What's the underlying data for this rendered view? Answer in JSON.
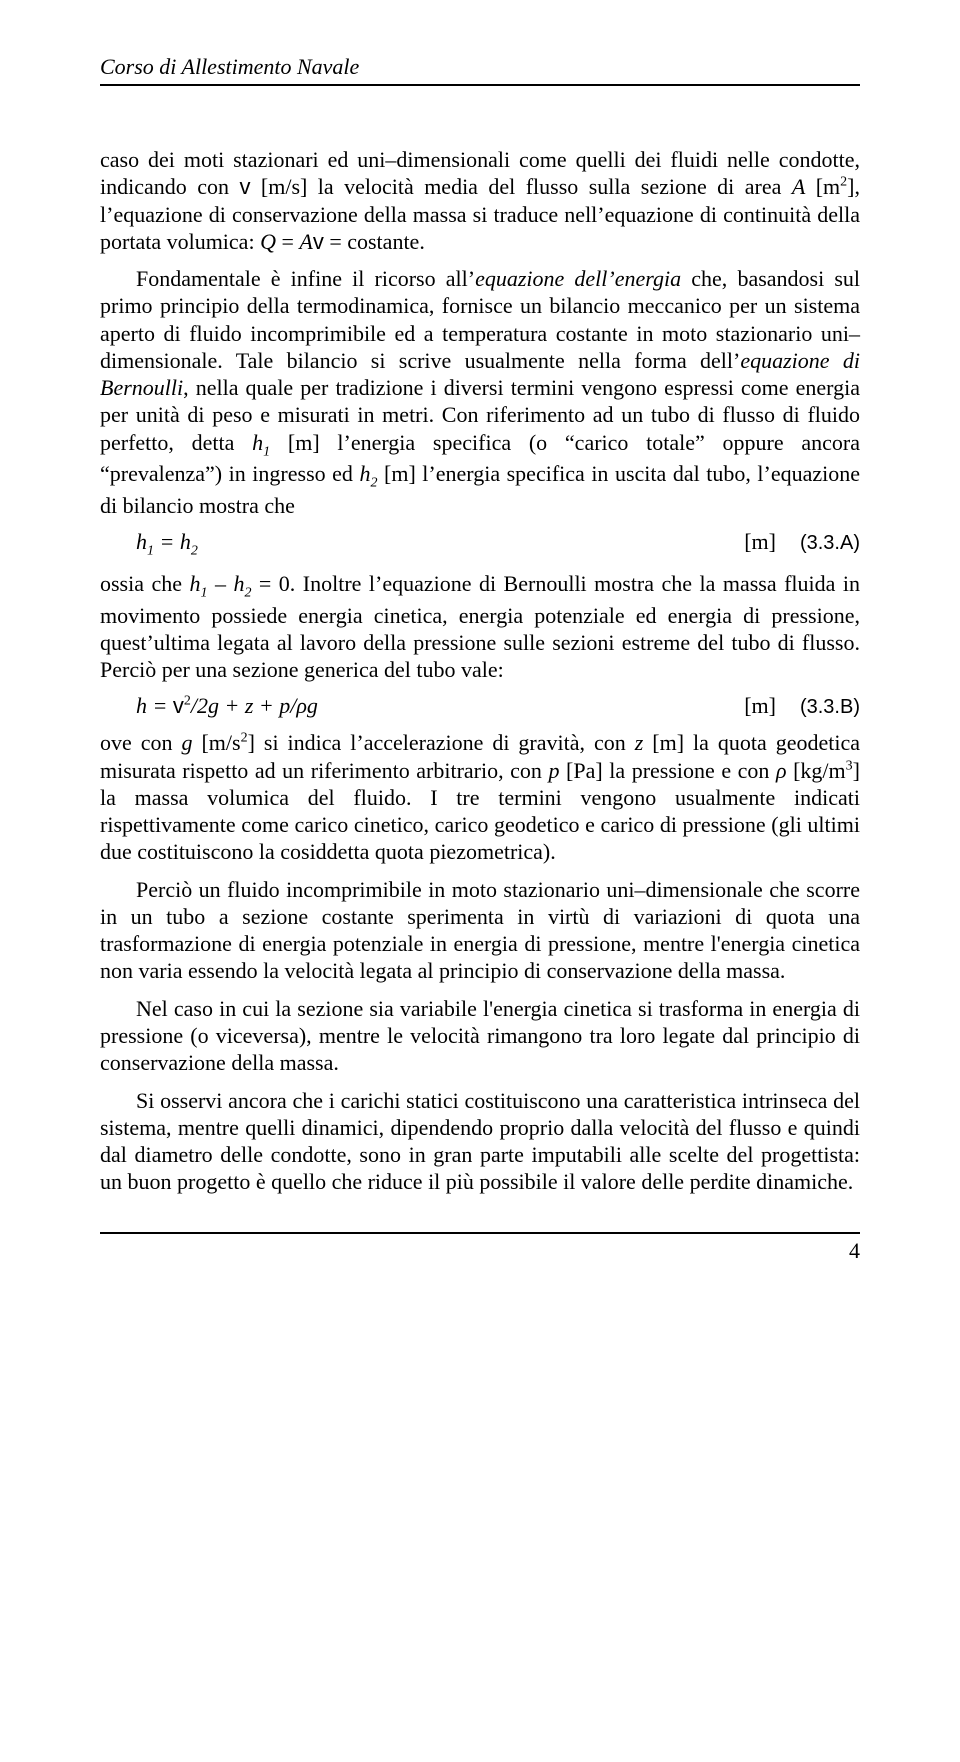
{
  "header": {
    "running_title": "Corso di Allestimento Navale"
  },
  "footer": {
    "page_number": "4"
  },
  "paragraphs": {
    "p1": "caso dei moti stazionari ed uni–dimensionali come quelli dei fluidi nelle condotte, indicando con v [m/s] la velocità media del flusso sulla sezione di area A [m²], l'equazione di conservazione della massa si traduce nell'equazione di continuità della portata volumica: Q = Av = costante.",
    "p2": "Fondamentale è infine il ricorso all'equazione dell'energia che, basandosi sul primo principio della termodinamica, fornisce un bilancio meccanico per un sistema aperto di fluido incomprimibile ed a temperatura costante in moto stazionario uni–dimensionale. Tale bilancio si scrive usualmente nella forma dell'equazione di Bernoulli, nella quale per tradizione i diversi termini vengono espressi come energia per unità di peso e misurati in metri. Con riferimento ad un tubo di flusso di fluido perfetto, detta h₁ [m] l'energia specifica (o \"carico totale\" oppure ancora \"prevalenza\") in ingresso ed h₂ [m] l'energia specifica in uscita dal tubo, l'equazione di bilancio mostra che",
    "p3": "ossia che h₁ – h₂ = 0. Inoltre l'equazione di Bernoulli mostra che la massa fluida in movimento possiede energia cinetica, energia potenziale ed energia di pressione, quest'ultima legata al lavoro della pressione sulle sezioni estreme del tubo di flusso. Perciò per una sezione generica del tubo vale:",
    "p4": "ove con g [m/s²] si indica l'accelerazione di gravità, con z [m] la quota geodetica misurata rispetto ad un riferimento arbitrario, con p [Pa] la pressione e con ρ [kg/m³] la massa volumica del fluido. I tre termini vengono usualmente indicati rispettivamente come carico cinetico, carico geodetico e carico di pressione (gli ultimi due costituiscono la cosiddetta quota piezometrica).",
    "p5": "Perciò un fluido incomprimibile in moto stazionario uni–dimensionale che scorre in un tubo a sezione costante sperimenta in virtù di variazioni di quota una trasformazione di energia potenziale in energia di pressione, mentre l'energia cinetica non varia essendo la velocità legata al principio di conservazione della massa.",
    "p6": "Nel caso in cui la sezione sia variabile l'energia cinetica si trasforma in energia di pressione (o viceversa), mentre le velocità rimangono tra loro legate dal principio di conservazione della massa.",
    "p7": "Si osservi ancora che i carichi statici costituiscono una caratteristica intrinseca del sistema, mentre quelli dinamici, dipendendo proprio dalla velocità del flusso e quindi dal diametro delle condotte, sono in gran parte imputabili alle scelte del progettista: un buon progetto è quello che riduce il più possibile il valore delle perdite dinamiche."
  },
  "equations": {
    "eqA": {
      "body": "h₁ = h₂",
      "unit": "[m]",
      "tag": "(3.3.A)"
    },
    "eqB": {
      "body_prefix": "h = ",
      "body_v": "v",
      "body_rest": "²/2g + z + p/ρg",
      "unit": "[m]",
      "tag": "(3.3.B)"
    }
  },
  "colors": {
    "text": "#000000",
    "background": "#ffffff",
    "rule": "#000000"
  },
  "typography": {
    "body_font": "Times New Roman",
    "body_size_pt": 12,
    "tag_font": "Arial",
    "line_height": 1.24
  }
}
